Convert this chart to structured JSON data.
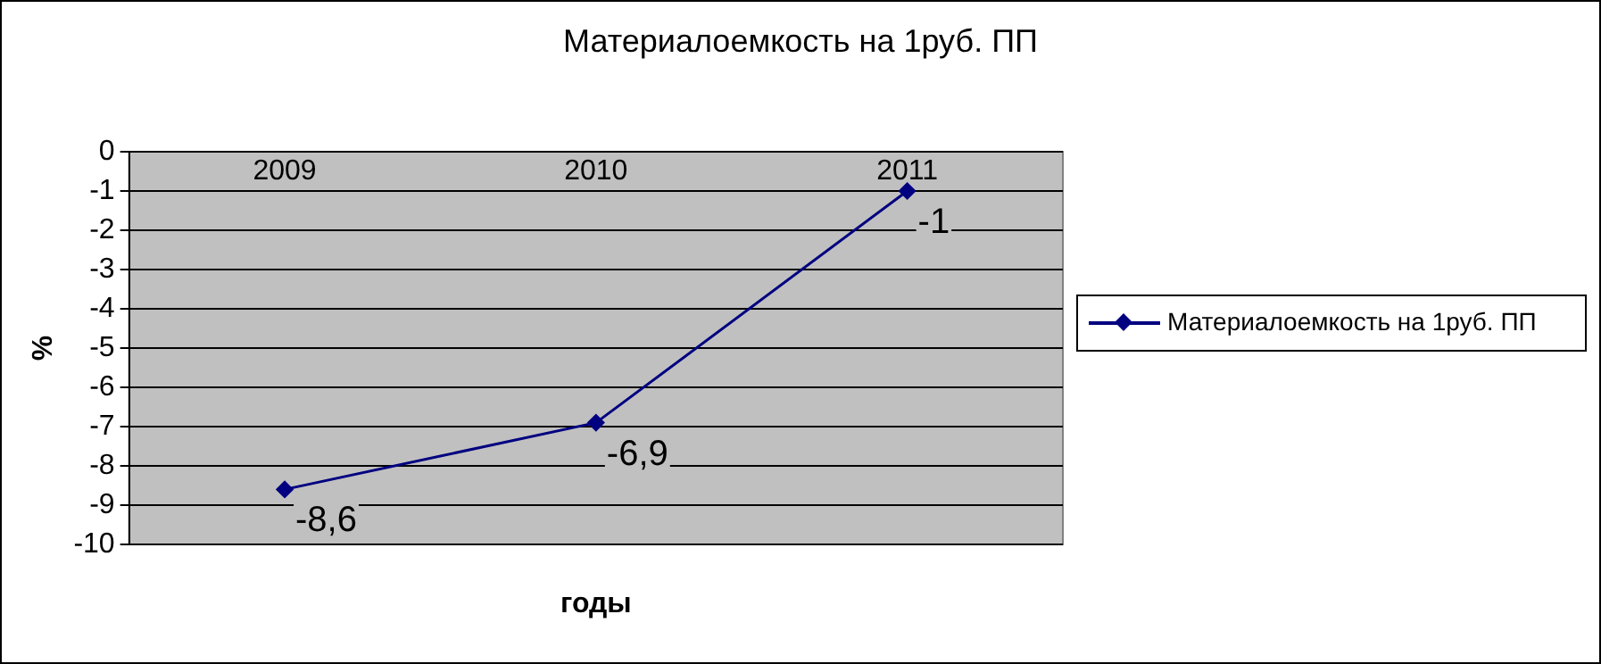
{
  "chart_data": {
    "type": "line",
    "title": "Материалоемкость на 1руб. ПП",
    "xlabel": "годы",
    "ylabel": "%",
    "categories": [
      "2009",
      "2010",
      "2011"
    ],
    "series": [
      {
        "name": "Материалоемкость на 1руб. ПП",
        "color": "#000080",
        "values": [
          -8.6,
          -6.9,
          -1
        ],
        "value_labels": [
          "-8,6",
          "-6,9",
          "-1"
        ]
      }
    ],
    "ylim": [
      -10,
      0
    ],
    "yticks": [
      -10,
      -9,
      -8,
      -7,
      -6,
      -5,
      -4,
      -3,
      -2,
      -1,
      0
    ],
    "grid": "y",
    "legend": "right",
    "marker": "diamond",
    "line_style": "solid"
  }
}
